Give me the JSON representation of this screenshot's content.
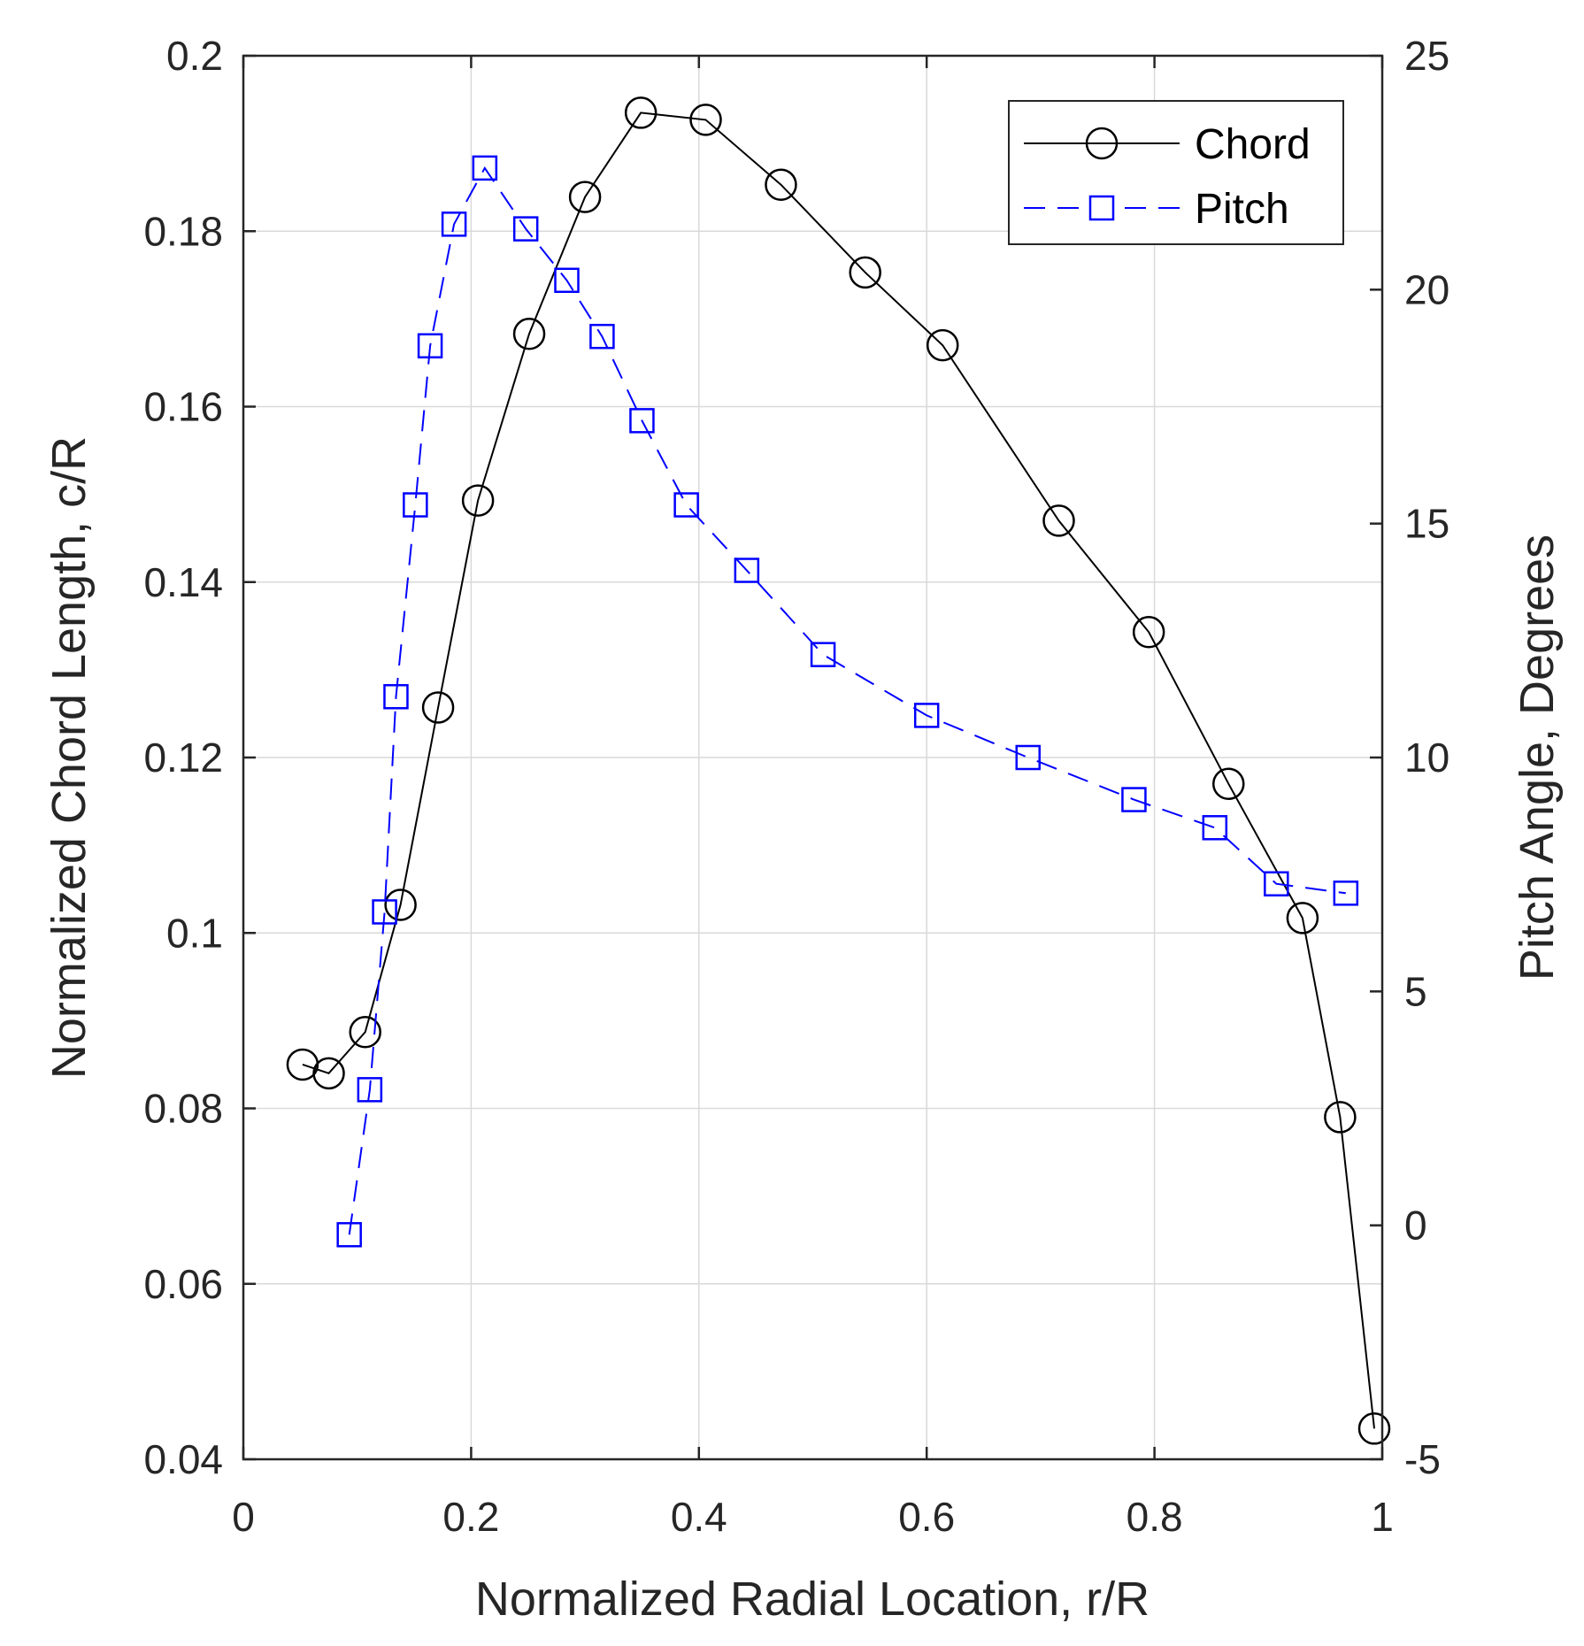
{
  "chart_data": {
    "type": "line",
    "xlabel": "Normalized Radial Location, r/R",
    "ylabel_left": "Normalized Chord Length, c/R",
    "ylabel_right": "Pitch Angle, Degrees",
    "xlim": [
      0,
      1
    ],
    "ylim_left": [
      0.04,
      0.2
    ],
    "ylim_right": [
      -5,
      25
    ],
    "grid": true,
    "legend_position": "top-right",
    "x_ticks": [
      0,
      0.2,
      0.4,
      0.6,
      0.8,
      1
    ],
    "x_tick_labels": [
      "0",
      "0.2",
      "0.4",
      "0.6",
      "0.8",
      "1"
    ],
    "y_left_ticks": [
      0.04,
      0.06,
      0.08,
      0.1,
      0.12,
      0.14,
      0.16,
      0.18,
      0.2
    ],
    "y_left_tick_labels": [
      "0.04",
      "0.06",
      "0.08",
      "0.1",
      "0.12",
      "0.14",
      "0.16",
      "0.18",
      "0.2"
    ],
    "y_right_ticks": [
      -5,
      0,
      5,
      10,
      15,
      20,
      25
    ],
    "y_right_tick_labels": [
      "-5",
      "0",
      "5",
      "10",
      "15",
      "20",
      "25"
    ],
    "series": [
      {
        "name": "Chord",
        "axis": "left",
        "color": "#000000",
        "marker": "circle",
        "line_style": "solid",
        "x": [
          0.052,
          0.075,
          0.107,
          0.138,
          0.171,
          0.206,
          0.251,
          0.3,
          0.349,
          0.406,
          0.472,
          0.546,
          0.614,
          0.716,
          0.795,
          0.865,
          0.93,
          0.963,
          0.993
        ],
        "y": [
          0.085,
          0.084,
          0.0887,
          0.1032,
          0.1257,
          0.1493,
          0.1683,
          0.1839,
          0.1935,
          0.1927,
          0.1853,
          0.1753,
          0.167,
          0.147,
          0.1343,
          0.117,
          0.1017,
          0.079,
          0.0435
        ]
      },
      {
        "name": "Pitch",
        "axis": "right",
        "color": "#0000ff",
        "marker": "square",
        "line_style": "dashed",
        "x": [
          0.093,
          0.111,
          0.124,
          0.134,
          0.151,
          0.164,
          0.185,
          0.212,
          0.248,
          0.284,
          0.315,
          0.35,
          0.389,
          0.442,
          0.509,
          0.6,
          0.689,
          0.782,
          0.853,
          0.907,
          0.968
        ],
        "y": [
          -0.2,
          2.9,
          6.7,
          11.3,
          15.4,
          18.8,
          21.4,
          22.6,
          21.3,
          20.2,
          19.0,
          17.2,
          15.4,
          14.0,
          12.2,
          10.9,
          10.0,
          9.1,
          8.5,
          7.3,
          7.1
        ]
      }
    ]
  }
}
